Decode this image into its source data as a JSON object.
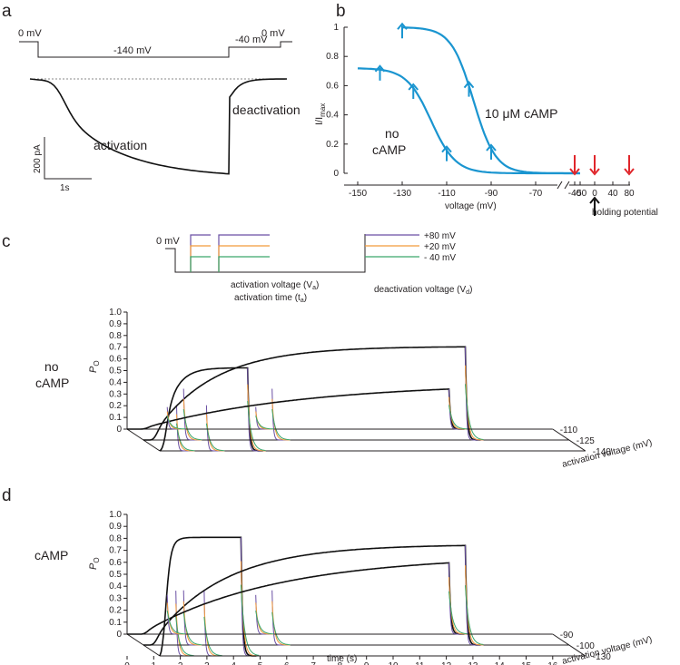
{
  "panels": {
    "a": "a",
    "b": "b",
    "c": "c",
    "d": "d"
  },
  "panel_a": {
    "protocol_labels": {
      "start": "0 mV",
      "hold": "-140 mV",
      "step": "-40 mV",
      "end": "0 mV"
    },
    "activation_label": "activation",
    "deactivation_label": "deactivation",
    "scale_current": "200 pA",
    "scale_time": "1s",
    "colors": {
      "activation": "#1a95d0",
      "deactivation": "#e0262b"
    }
  },
  "panel_b": {
    "chart_data": {
      "type": "line",
      "xlabel": "voltage (mV)",
      "ylabel_main": "I/I",
      "ylabel_sub": "max",
      "x_ticks": [
        "-150",
        "-130",
        "-110",
        "-90",
        "-70",
        "-50",
        "-40",
        "0",
        "40",
        "80"
      ],
      "y_ticks": [
        "0",
        "0.2",
        "0.4",
        "0.6",
        "0.8",
        "1"
      ],
      "ylim": [
        0,
        1
      ],
      "series": [
        {
          "name": "no cAMP",
          "label_lines": [
            "no",
            "cAMP"
          ],
          "v_half": -117,
          "max": 0.72,
          "slope": 5.5
        },
        {
          "name": "10 μM cAMP",
          "v_half": -98,
          "max": 1.0,
          "slope": 5
        }
      ],
      "arrow_voltages_blue": [
        -140,
        -125,
        -110,
        -130,
        -100,
        -90
      ],
      "arrow_voltages_red": [
        -40,
        0,
        80
      ],
      "holding_label": "holding potential",
      "colors": {
        "curve": "#1a95d0",
        "deactivation_arrow": "#e0262b",
        "holding_arrow": "#111111"
      }
    }
  },
  "panel_c_protocol": {
    "start": "0 mV",
    "levels": [
      "+80 mV",
      "+20 mV",
      "- 40 mV"
    ],
    "level_colors": [
      "#6a4fa3",
      "#f29a3b",
      "#3aa66b"
    ],
    "activation_voltage": "activation voltage (V",
    "activation_voltage_sub": "a",
    "activation_time": "activation time (t",
    "activation_time_sub": "a",
    "deactivation_voltage": "deactivation voltage (V",
    "deactivation_voltage_sub": "d",
    "close": ")"
  },
  "panel_c": {
    "chart_data": {
      "type": "line",
      "condition": [
        "no",
        "cAMP"
      ],
      "ylabel": "P",
      "ylabel_sub": "O",
      "y_ticks": [
        "0",
        "0.1",
        "0.2",
        "0.3",
        "0.4",
        "0.5",
        "0.6",
        "0.7",
        "0.8",
        "0.9",
        "1.0"
      ],
      "z_label": "activation voltage (mV)",
      "z_ticks": [
        "-140",
        "-125",
        "-110"
      ],
      "traces": [
        {
          "voltage": -140,
          "plateau": 0.71,
          "tau": 0.45,
          "step_end": 3.3
        },
        {
          "voltage": -125,
          "plateau": 0.8,
          "tau": 2.2,
          "step_end": 12.1
        },
        {
          "voltage": -110,
          "plateau": 0.4,
          "tau": 6,
          "step_end": 12.1
        }
      ]
    }
  },
  "panel_d": {
    "chart_data": {
      "type": "line",
      "condition": "cAMP",
      "ylabel": "P",
      "ylabel_sub": "O",
      "y_ticks": [
        "0",
        "0.1",
        "0.2",
        "0.3",
        "0.4",
        "0.5",
        "0.6",
        "0.7",
        "0.8",
        "0.9",
        "1.0"
      ],
      "xlabel": "time (s)",
      "x_ticks": [
        "0",
        "1",
        "2",
        "3",
        "4",
        "5",
        "6",
        "7",
        "8",
        "9",
        "10",
        "11",
        "12",
        "13",
        "14",
        "15",
        "16"
      ],
      "xlim": [
        0,
        16
      ],
      "z_label": "activation voltage (mV)",
      "z_ticks": [
        "-130",
        "-100",
        "-90"
      ],
      "traces": [
        {
          "voltage": -130,
          "plateau": 0.99,
          "tau": 0.18,
          "step_end": 3.05
        },
        {
          "voltage": -100,
          "plateau": 0.84,
          "tau": 2.6,
          "step_end": 12.1
        },
        {
          "voltage": -90,
          "plateau": 0.66,
          "tau": 5,
          "step_end": 12.1
        }
      ]
    }
  }
}
